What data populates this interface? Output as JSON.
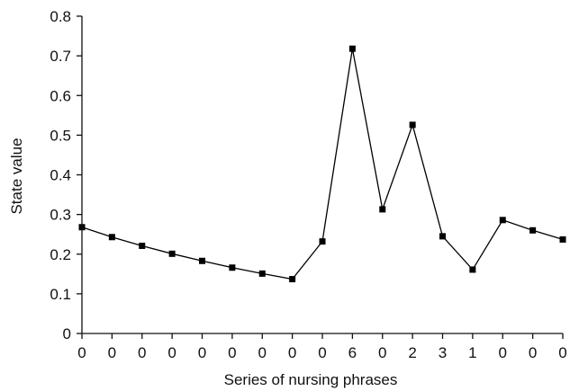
{
  "chart_data": {
    "type": "line",
    "title": "",
    "xlabel": "Series of nursing phrases",
    "ylabel": "State value",
    "categories": [
      "0",
      "0",
      "0",
      "0",
      "0",
      "0",
      "0",
      "0",
      "0",
      "6",
      "0",
      "2",
      "3",
      "1",
      "0",
      "0",
      "0"
    ],
    "series": [
      {
        "values": [
          0.268,
          0.243,
          0.221,
          0.201,
          0.183,
          0.166,
          0.151,
          0.137,
          0.232,
          0.718,
          0.313,
          0.526,
          0.245,
          0.161,
          0.286,
          0.26,
          0.237
        ],
        "color": "#000000",
        "marker": "square"
      }
    ],
    "ylim": [
      0,
      0.8
    ],
    "yticks": [
      "0",
      "0.1",
      "0.2",
      "0.3",
      "0.4",
      "0.5",
      "0.6",
      "0.7",
      "0.8"
    ],
    "grid": false,
    "legend": "none"
  }
}
